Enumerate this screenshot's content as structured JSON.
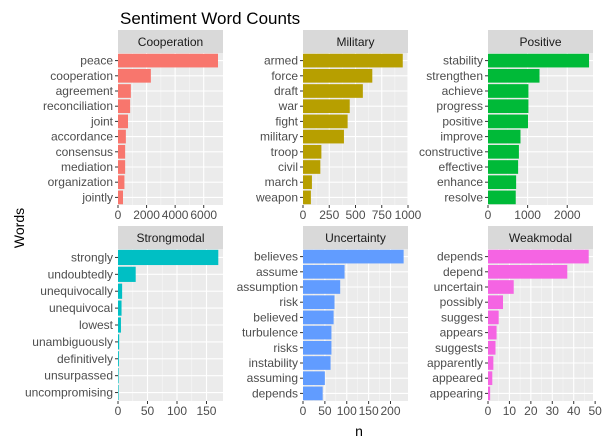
{
  "chart_data": {
    "type": "bar",
    "title": "Sentiment Word Counts",
    "xlabel": "n",
    "ylabel": "Words",
    "grid": true,
    "legend": "none",
    "orientation": "horizontal",
    "panels": [
      {
        "name": "Cooperation",
        "color": "#F8766D",
        "categories": [
          "peace",
          "cooperation",
          "agreement",
          "reconciliation",
          "joint",
          "accordance",
          "consensus",
          "mediation",
          "organization",
          "jointly"
        ],
        "values": [
          7000,
          2300,
          900,
          850,
          700,
          550,
          500,
          500,
          450,
          350
        ],
        "xlim": [
          0,
          7350
        ],
        "ticks": [
          0,
          2000,
          4000,
          6000
        ],
        "tick_labels": [
          "0",
          "2000",
          "4000",
          "6000"
        ]
      },
      {
        "name": "Military",
        "color": "#B79F00",
        "categories": [
          "armed",
          "force",
          "draft",
          "war",
          "fight",
          "military",
          "troop",
          "civil",
          "march",
          "weapon"
        ],
        "values": [
          950,
          660,
          570,
          445,
          425,
          390,
          175,
          165,
          85,
          75
        ],
        "xlim": [
          0,
          1000
        ],
        "ticks": [
          0,
          250,
          500,
          750,
          1000
        ],
        "tick_labels": [
          "0",
          "250",
          "500",
          "750",
          "1000"
        ]
      },
      {
        "name": "Positive",
        "color": "#00BA38",
        "categories": [
          "stability",
          "strengthen",
          "achieve",
          "progress",
          "positive",
          "improve",
          "constructive",
          "effective",
          "enhance",
          "resolve"
        ],
        "values": [
          2550,
          1300,
          1020,
          1020,
          1010,
          820,
          780,
          760,
          710,
          700
        ],
        "xlim": [
          0,
          2650
        ],
        "ticks": [
          0,
          1000,
          2000
        ],
        "tick_labels": [
          "0",
          "1000",
          "2000"
        ]
      },
      {
        "name": "Strongmodal",
        "color": "#00BFC4",
        "categories": [
          "strongly",
          "undoubtedly",
          "unequivocally",
          "unequivocal",
          "lowest",
          "unambiguously",
          "definitively",
          "unsurpassed",
          "uncompromising"
        ],
        "values": [
          170,
          30,
          7,
          6,
          5,
          2,
          1.5,
          1,
          1
        ],
        "xlim": [
          0,
          178
        ],
        "ticks": [
          0,
          50,
          100,
          150
        ],
        "tick_labels": [
          "0",
          "50",
          "100",
          "150"
        ]
      },
      {
        "name": "Uncertainty",
        "color": "#619CFF",
        "categories": [
          "believes",
          "assume",
          "assumption",
          "risk",
          "believed",
          "turbulence",
          "risks",
          "instability",
          "assuming",
          "depends"
        ],
        "values": [
          230,
          95,
          85,
          72,
          70,
          65,
          65,
          63,
          50,
          45
        ],
        "xlim": [
          0,
          240
        ],
        "ticks": [
          0,
          50,
          100,
          150,
          200
        ],
        "tick_labels": [
          "0",
          "50",
          "100",
          "150",
          "200"
        ]
      },
      {
        "name": "Weakmodal",
        "color": "#F564E3",
        "categories": [
          "depends",
          "depend",
          "uncertain",
          "possibly",
          "suggest",
          "appears",
          "suggests",
          "apparently",
          "appeared",
          "appearing"
        ],
        "values": [
          47,
          37,
          12,
          7,
          5,
          4,
          3.5,
          2.5,
          2,
          1
        ],
        "xlim": [
          0,
          49
        ],
        "ticks": [
          0,
          10,
          20,
          30,
          40,
          50
        ],
        "tick_labels": [
          "0",
          "10",
          "20",
          "30",
          "40",
          "50"
        ]
      }
    ]
  }
}
